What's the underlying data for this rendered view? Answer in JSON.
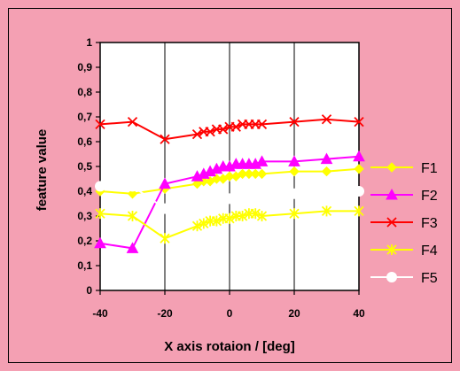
{
  "chart_data": {
    "type": "line",
    "xlabel": "X axis rotaion / [deg]",
    "ylabel": "feature value",
    "xlim": [
      -40,
      40
    ],
    "ylim": [
      0,
      1
    ],
    "x_ticks": [
      "-40",
      "-20",
      "0",
      "20",
      "40"
    ],
    "y_ticks": [
      "0",
      "0,1",
      "0,2",
      "0,3",
      "0,4",
      "0,5",
      "0,6",
      "0,7",
      "0,8",
      "0,9",
      "1"
    ],
    "grid": "vertical lines at x ticks",
    "legend": "right",
    "colors": {
      "background": "#f4a0b3",
      "plot_area": "#ffffff",
      "border": "#000000"
    },
    "series": [
      {
        "name": "F1",
        "color": "#ffff00",
        "marker": "diamond",
        "x": [
          -40,
          -30,
          -20,
          -10,
          -8,
          -6,
          -4,
          -2,
          0,
          2,
          4,
          6,
          8,
          10,
          20,
          30,
          40
        ],
        "y": [
          0.4,
          0.39,
          0.41,
          0.43,
          0.44,
          0.44,
          0.45,
          0.45,
          0.46,
          0.46,
          0.47,
          0.47,
          0.47,
          0.47,
          0.48,
          0.48,
          0.49
        ]
      },
      {
        "name": "F2",
        "color": "#ff00ff",
        "marker": "triangle",
        "x": [
          -40,
          -30,
          -20,
          -10,
          -8,
          -6,
          -4,
          -2,
          0,
          2,
          4,
          6,
          8,
          10,
          20,
          30,
          40
        ],
        "y": [
          0.19,
          0.17,
          0.43,
          0.46,
          0.47,
          0.48,
          0.49,
          0.5,
          0.5,
          0.51,
          0.51,
          0.51,
          0.51,
          0.52,
          0.52,
          0.53,
          0.54
        ]
      },
      {
        "name": "F3",
        "color": "#ff0000",
        "marker": "x",
        "x": [
          -40,
          -30,
          -20,
          -10,
          -8,
          -6,
          -4,
          -2,
          0,
          2,
          4,
          6,
          8,
          10,
          20,
          30,
          40
        ],
        "y": [
          0.67,
          0.68,
          0.61,
          0.63,
          0.64,
          0.64,
          0.65,
          0.65,
          0.66,
          0.66,
          0.67,
          0.67,
          0.67,
          0.67,
          0.68,
          0.69,
          0.68
        ]
      },
      {
        "name": "F4",
        "color": "#ffff00",
        "marker": "asterisk",
        "x": [
          -40,
          -30,
          -20,
          -10,
          -8,
          -6,
          -4,
          -2,
          0,
          2,
          4,
          6,
          8,
          10,
          20,
          30,
          40
        ],
        "y": [
          0.31,
          0.3,
          0.21,
          0.26,
          0.27,
          0.28,
          0.28,
          0.29,
          0.29,
          0.3,
          0.3,
          0.31,
          0.31,
          0.3,
          0.31,
          0.32,
          0.32
        ]
      },
      {
        "name": "F5",
        "color": "#ffffff",
        "marker": "circle",
        "x": [
          -40,
          -30,
          -20,
          -10,
          -8,
          -6,
          -4,
          -2,
          0,
          2,
          4,
          6,
          8,
          10,
          20,
          30,
          40
        ],
        "y": [
          0.42,
          0.42,
          0.33,
          0.35,
          0.35,
          0.36,
          0.36,
          0.37,
          0.37,
          0.37,
          0.37,
          0.38,
          0.38,
          0.38,
          0.39,
          0.39,
          0.4
        ]
      }
    ]
  }
}
